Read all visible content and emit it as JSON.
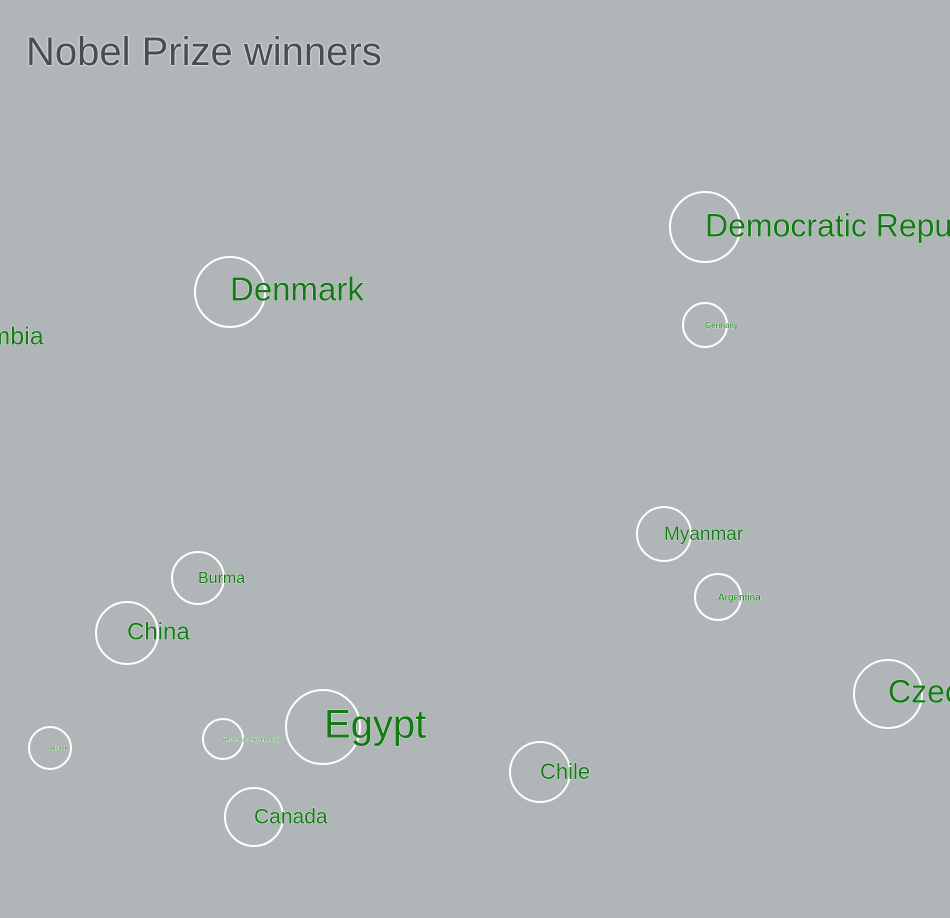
{
  "title": "Nobel Prize winners",
  "colors": {
    "background": "#b0b6b8",
    "label": "#137a13",
    "bubble_stroke": "#ffffff",
    "title": "#4a4d50"
  },
  "chart_data": {
    "type": "bubble",
    "title": "Nobel Prize winners",
    "xlabel": "",
    "ylabel": "",
    "grid": false,
    "legend": "none",
    "nodes": [
      {
        "name": "Democratic Republic of the Congo"
      },
      {
        "name": "Denmark"
      },
      {
        "name": "Colombia"
      },
      {
        "name": "Germany"
      },
      {
        "name": "Myanmar"
      },
      {
        "name": "Burma"
      },
      {
        "name": "Argentina"
      },
      {
        "name": "China"
      },
      {
        "name": "Czech Republic"
      },
      {
        "name": "Egypt"
      },
      {
        "name": "Alsace"
      },
      {
        "name": "Hesse-Kassel (Germany)"
      },
      {
        "name": "Chile"
      },
      {
        "name": "Canada"
      }
    ]
  }
}
